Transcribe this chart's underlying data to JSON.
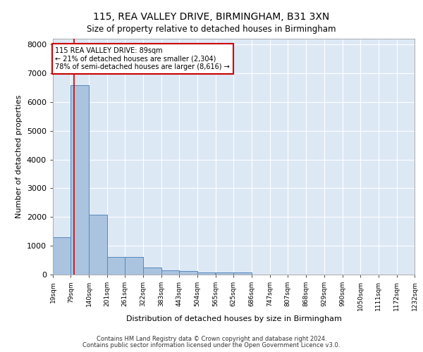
{
  "title1": "115, REA VALLEY DRIVE, BIRMINGHAM, B31 3XN",
  "title2": "Size of property relative to detached houses in Birmingham",
  "xlabel": "Distribution of detached houses by size in Birmingham",
  "ylabel": "Number of detached properties",
  "footer1": "Contains HM Land Registry data © Crown copyright and database right 2024.",
  "footer2": "Contains public sector information licensed under the Open Government Licence v3.0.",
  "annotation_line1": "115 REA VALLEY DRIVE: 89sqm",
  "annotation_line2": "← 21% of detached houses are smaller (2,304)",
  "annotation_line3": "78% of semi-detached houses are larger (8,616) →",
  "subject_size_sqm": 89,
  "bin_edges": [
    19,
    79,
    140,
    201,
    261,
    322,
    383,
    443,
    504,
    565,
    625,
    686,
    747,
    807,
    868,
    929,
    990,
    1050,
    1111,
    1172,
    1232
  ],
  "bar_heights": [
    1300,
    6580,
    2070,
    620,
    620,
    240,
    140,
    130,
    75,
    75,
    70,
    0,
    0,
    0,
    0,
    0,
    0,
    0,
    0,
    0
  ],
  "bar_color": "#aac4e0",
  "bar_edge_color": "#5588bb",
  "ref_line_color": "#cc0000",
  "annotation_box_color": "#cc0000",
  "background_color": "#dde8f5",
  "grid_color": "#ffffff",
  "ylim": [
    0,
    8200
  ],
  "yticks": [
    0,
    1000,
    2000,
    3000,
    4000,
    5000,
    6000,
    7000,
    8000
  ]
}
